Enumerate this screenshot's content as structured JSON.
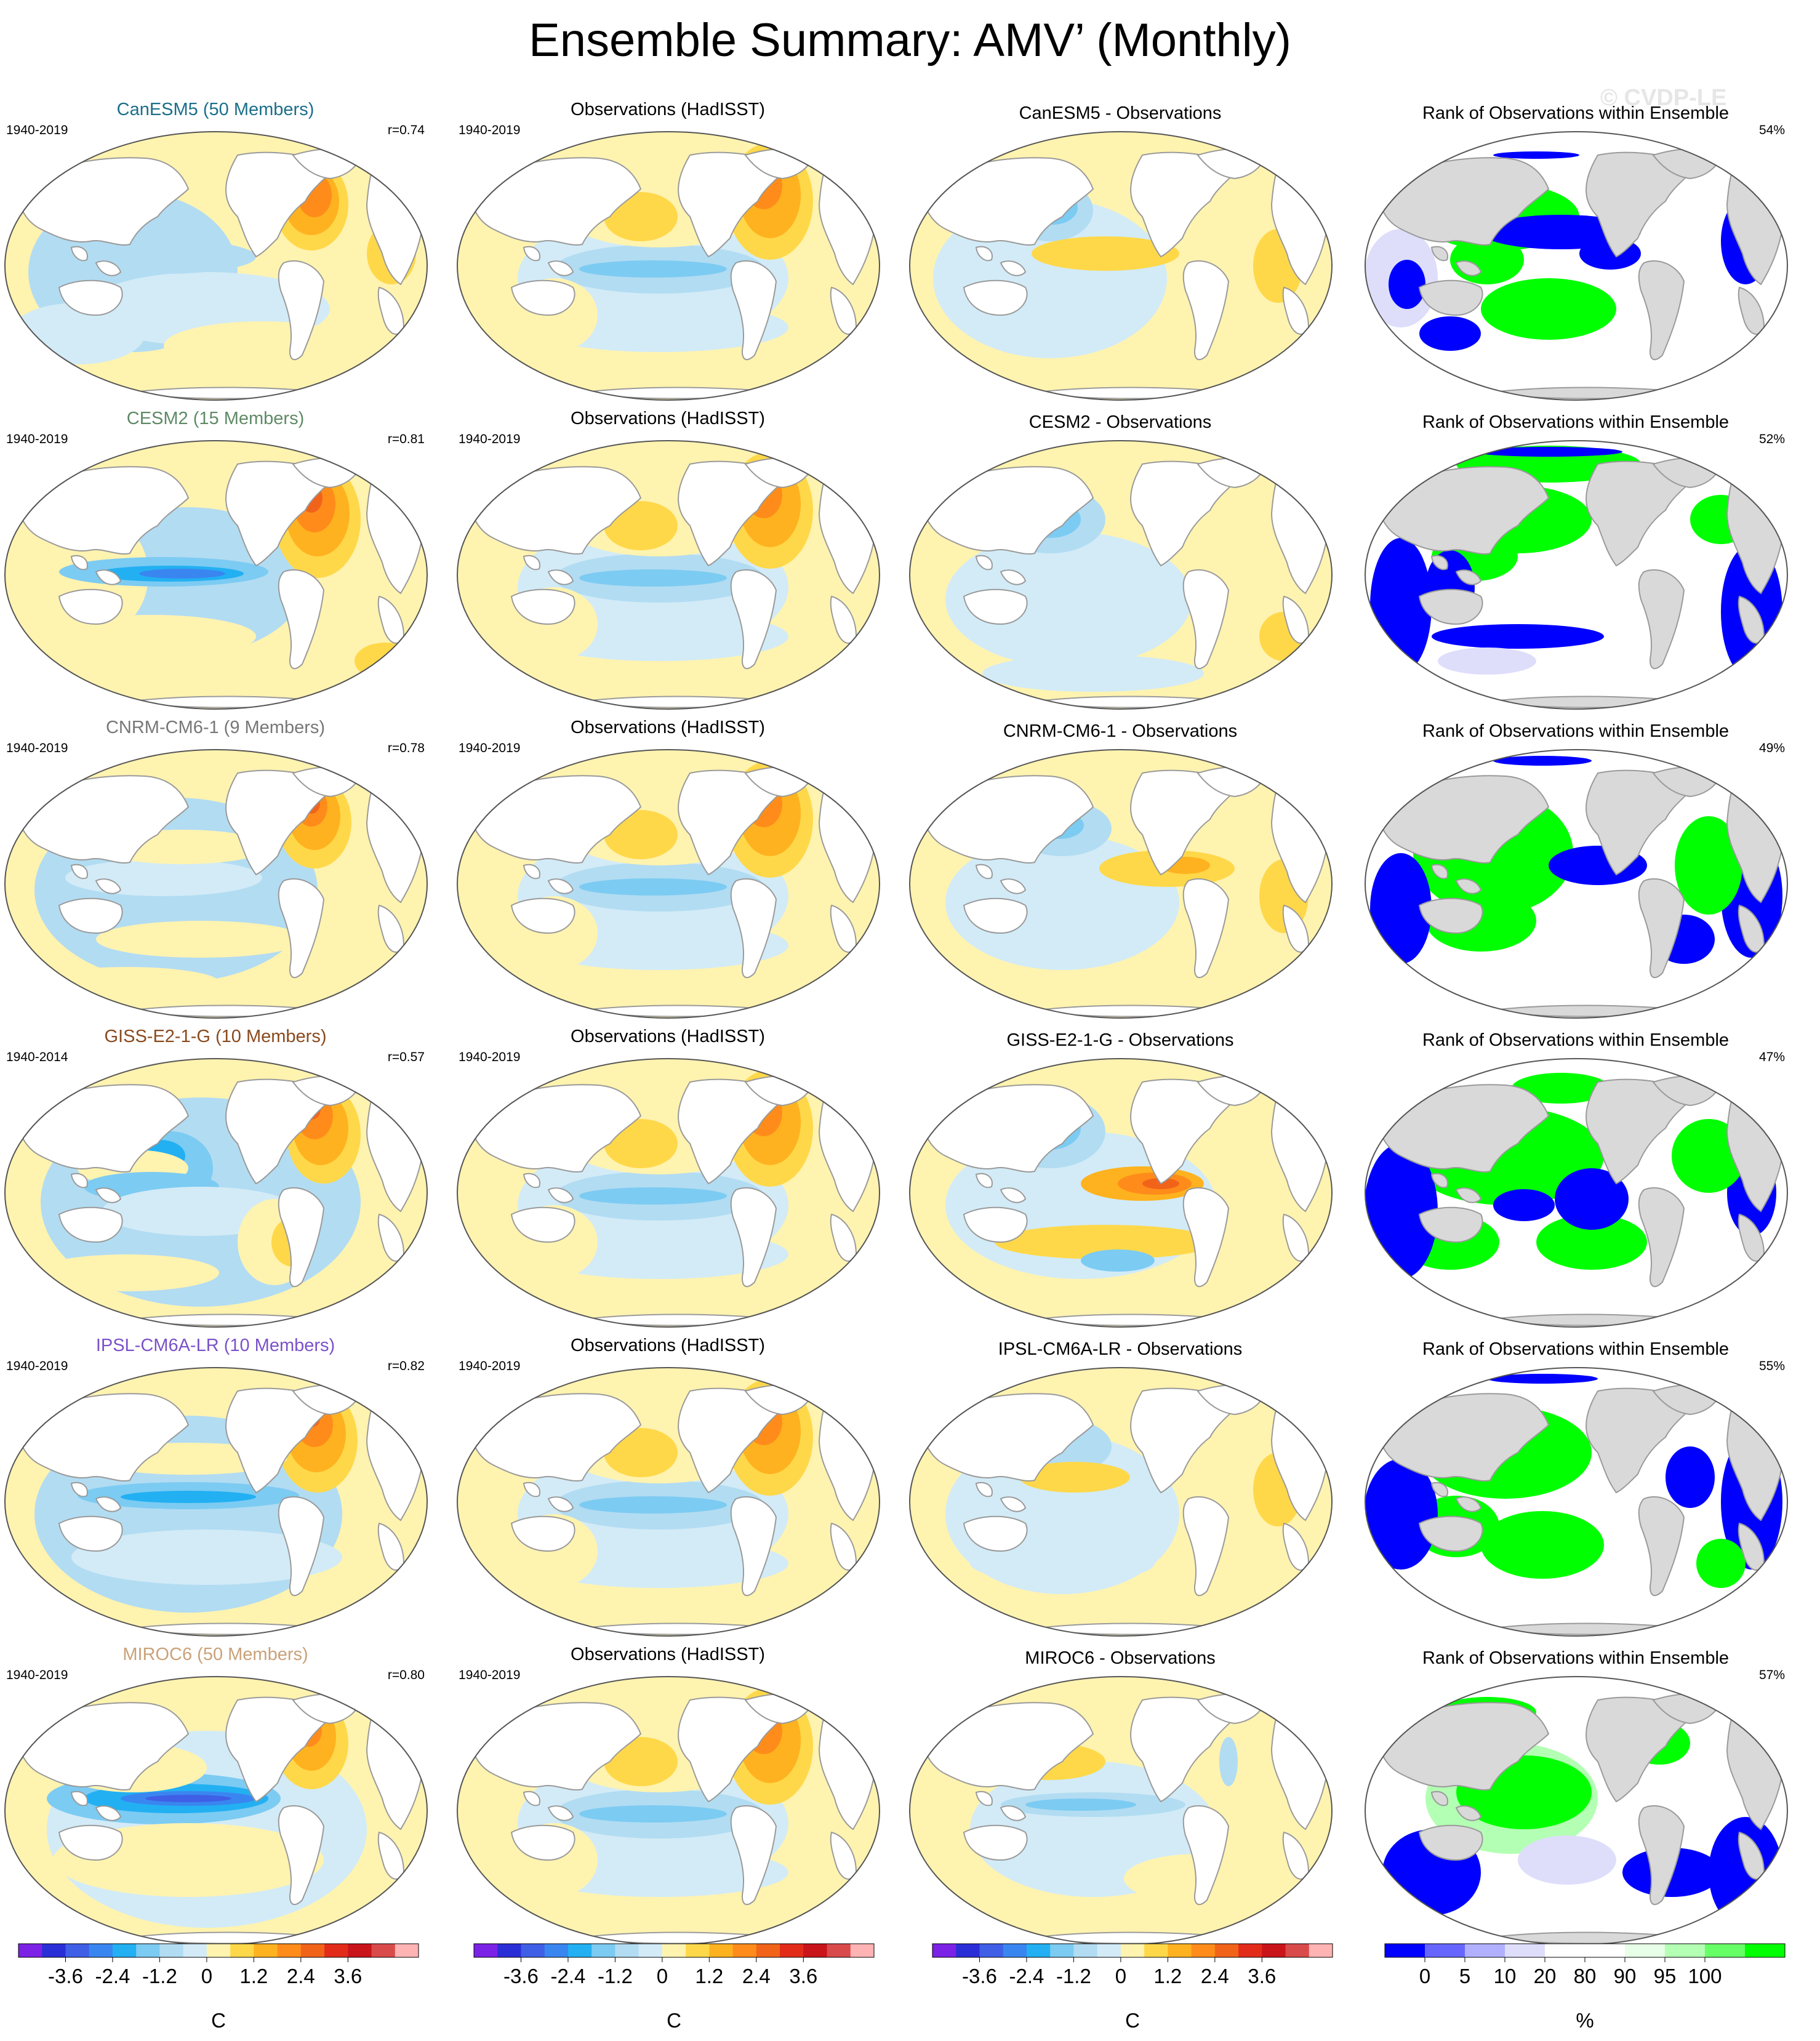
{
  "title": "Ensemble Summary: AMV’ (Monthly)",
  "watermark": "© CVDP-LE",
  "colors": {
    "ocean_land": "#ffffff",
    "rank_land": "#d9d9d9",
    "coast": "#9a9a9a",
    "anomaly_scale": [
      "#7b22e6",
      "#2a2ed6",
      "#3f5fe6",
      "#3a86f0",
      "#22b0f2",
      "#7ccbf2",
      "#b2dcf2",
      "#d2ebf7",
      "#fff3b0",
      "#ffd84a",
      "#ffb21f",
      "#ff8c1a",
      "#f2631a",
      "#e32b1a",
      "#c9141a",
      "#d94a4a",
      "#ffb3b3"
    ],
    "rank_scale": [
      "#0000ff",
      "#6666ff",
      "#b0b0ff",
      "#dedefb",
      "#ffffff",
      "#ffffff",
      "#e6ffe6",
      "#b3ffb3",
      "#66ff66",
      "#00ff00"
    ]
  },
  "rows": [
    {
      "model": "CanESM5 (50 Members)",
      "model_color": "#1b6f8a",
      "model_period": "1940-2019",
      "r": "r=0.74",
      "obs_title": "Observations (HadISST)",
      "obs_period": "1940-2019",
      "diff_title": "CanESM5 - Observations",
      "rank_title": "Rank of Observations within Ensemble",
      "rank_pct": "54%"
    },
    {
      "model": "CESM2 (15 Members)",
      "model_color": "#5f8a66",
      "model_period": "1940-2019",
      "r": "r=0.81",
      "obs_title": "Observations (HadISST)",
      "obs_period": "1940-2019",
      "diff_title": "CESM2 - Observations",
      "rank_title": "Rank of Observations within Ensemble",
      "rank_pct": "52%"
    },
    {
      "model": "CNRM-CM6-1 (9 Members)",
      "model_color": "#777777",
      "model_period": "1940-2019",
      "r": "r=0.78",
      "obs_title": "Observations (HadISST)",
      "obs_period": "1940-2019",
      "diff_title": "CNRM-CM6-1 - Observations",
      "rank_title": "Rank of Observations within Ensemble",
      "rank_pct": "49%"
    },
    {
      "model": "GISS-E2-1-G (10 Members)",
      "model_color": "#8a4a1e",
      "model_period": "1940-2014",
      "r": "r=0.57",
      "obs_title": "Observations (HadISST)",
      "obs_period": "1940-2019",
      "diff_title": "GISS-E2-1-G - Observations",
      "rank_title": "Rank of Observations within Ensemble",
      "rank_pct": "47%"
    },
    {
      "model": "IPSL-CM6A-LR (10 Members)",
      "model_color": "#7b52c9",
      "model_period": "1940-2019",
      "r": "r=0.82",
      "obs_title": "Observations (HadISST)",
      "obs_period": "1940-2019",
      "diff_title": "IPSL-CM6A-LR - Observations",
      "rank_title": "Rank of Observations within Ensemble",
      "rank_pct": "55%"
    },
    {
      "model": "MIROC6 (50 Members)",
      "model_color": "#c9a27a",
      "model_period": "1940-2019",
      "r": "r=0.80",
      "obs_title": "Observations (HadISST)",
      "obs_period": "1940-2019",
      "diff_title": "MIROC6 - Observations",
      "rank_title": "Rank of Observations within Ensemble",
      "rank_pct": "57%"
    }
  ],
  "colorbars": {
    "anomaly": {
      "ticks": [
        "-3.6",
        "-2.4",
        "-1.2",
        "0",
        "1.2",
        "2.4",
        "3.6"
      ],
      "units": "C"
    },
    "rank": {
      "ticks": [
        "0",
        "5",
        "10",
        "20",
        "80",
        "90",
        "95",
        "100"
      ],
      "units": "%"
    }
  }
}
